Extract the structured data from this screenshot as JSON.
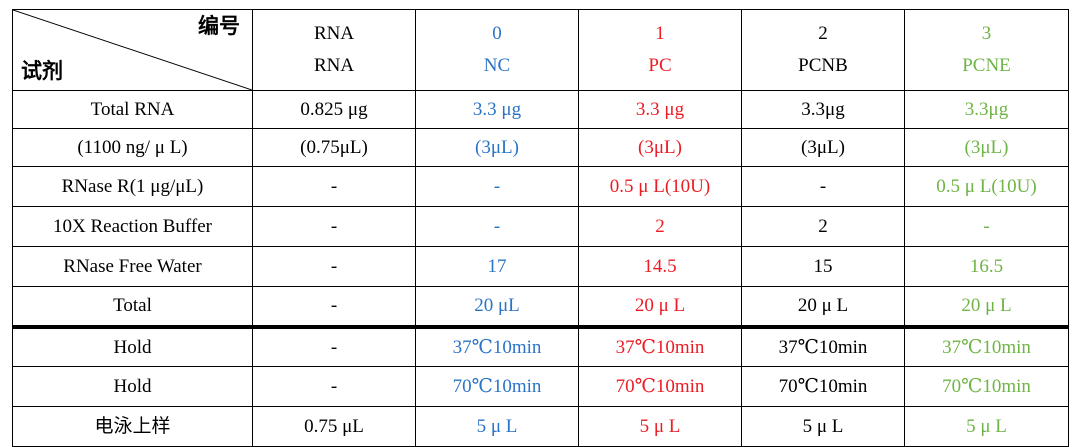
{
  "header": {
    "label_top": "编号",
    "label_bottom": "试剂",
    "columns": [
      {
        "id": "RNA",
        "name": "RNA",
        "color": "#000000"
      },
      {
        "id": "0",
        "name": "NC",
        "color": "#2a74c7"
      },
      {
        "id": "1",
        "name": "PC",
        "color": "#ec1c24"
      },
      {
        "id": "2",
        "name": "PCNB",
        "color": "#000000"
      },
      {
        "id": "3",
        "name": "PCNE",
        "color": "#6fb446"
      }
    ]
  },
  "total_rna": {
    "label": "Total RNA",
    "sublabel": "(1100 ng/ μ L)",
    "values": [
      "0.825 μg",
      "3.3 μg",
      "3.3 μg",
      "3.3μg",
      "3.3μg"
    ],
    "subvalues": [
      "(0.75μL)",
      "(3μL)",
      "(3μL)",
      "(3μL)",
      "(3μL)"
    ]
  },
  "rows_top": [
    {
      "label": "RNase R(1 μg/μL)",
      "values": [
        "-",
        "-",
        "0.5 μ L(10U)",
        "-",
        "0.5 μ L(10U)"
      ]
    },
    {
      "label": "10X Reaction Buffer",
      "values": [
        "-",
        "-",
        "2",
        "2",
        "-"
      ]
    },
    {
      "label": "RNase Free Water",
      "values": [
        "-",
        "17",
        "14.5",
        "15",
        "16.5"
      ]
    },
    {
      "label": "Total",
      "values": [
        "-",
        "20 μL",
        "20 μ L",
        "20 μ L",
        "20 μ L"
      ]
    }
  ],
  "rows_bottom": [
    {
      "label": "Hold",
      "values": [
        "-",
        "37℃10min",
        "37℃10min",
        "37℃10min",
        "37℃10min"
      ]
    },
    {
      "label": "Hold",
      "values": [
        "-",
        "70℃10min",
        "70℃10min",
        "70℃10min",
        "70℃10min"
      ]
    },
    {
      "label": "电泳上样",
      "values": [
        "0.75 μL",
        "5 μ L",
        "5 μ L",
        "5 μ L",
        "5 μ L"
      ]
    }
  ]
}
